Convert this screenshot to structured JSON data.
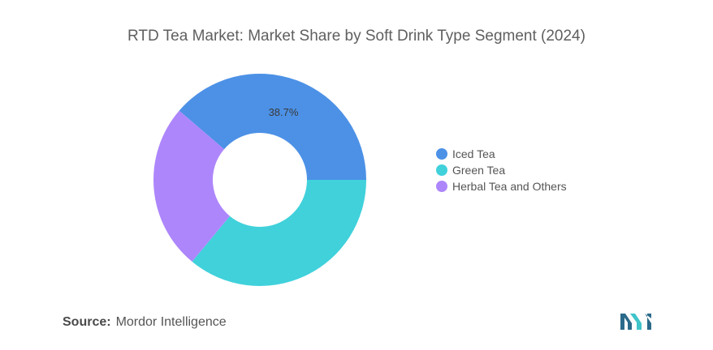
{
  "title": "RTD Tea Market: Market Share by Soft Drink Type Segment (2024)",
  "chart_data": {
    "type": "pie",
    "variant": "donut",
    "title": "RTD Tea Market: Market Share by Soft Drink Type Segment (2024)",
    "categories": [
      "Iced Tea",
      "Green Tea",
      "Herbal Tea and Others"
    ],
    "values": [
      38.7,
      36.0,
      25.3
    ],
    "colors": [
      "#4c91e6",
      "#40d1db",
      "#ae86fb"
    ],
    "data_labels": [
      "38.7%",
      "",
      ""
    ],
    "legend_position": "right"
  },
  "legend": [
    {
      "label": "Iced Tea",
      "color": "#4c91e6"
    },
    {
      "label": "Green Tea",
      "color": "#40d1db"
    },
    {
      "label": "Herbal Tea and Others",
      "color": "#ae86fb"
    }
  ],
  "source": {
    "label": "Source:",
    "value": "Mordor Intelligence"
  },
  "logo_icon": "mordor-intelligence-logo-icon"
}
